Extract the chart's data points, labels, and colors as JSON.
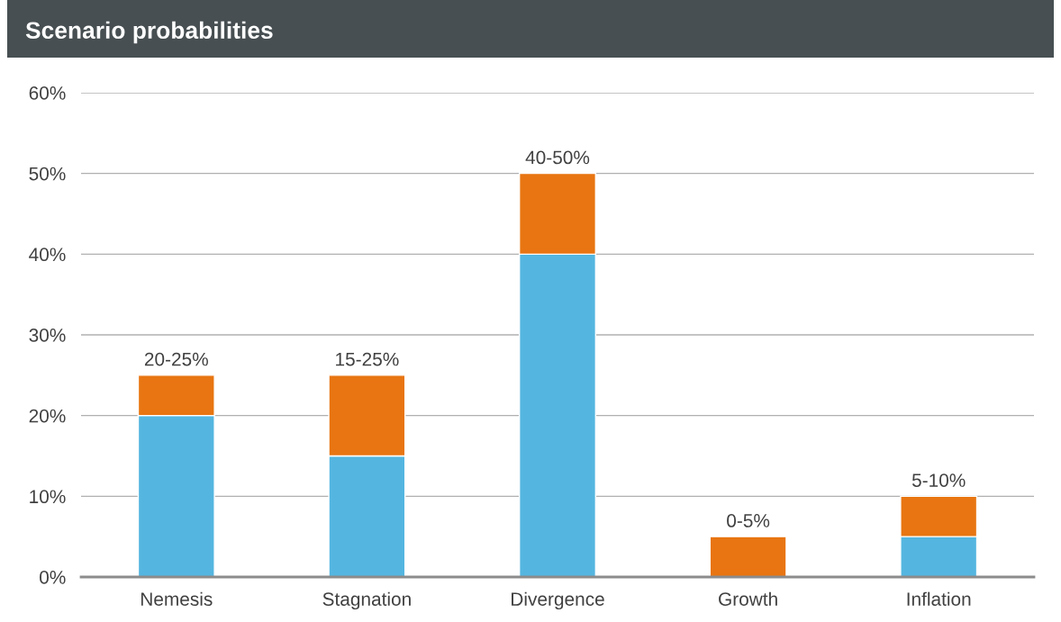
{
  "chart_data": {
    "type": "bar",
    "title": "Scenario probabilities",
    "stacked": true,
    "categories": [
      "Nemesis",
      "Stagnation",
      "Divergence",
      "Growth",
      "Inflation"
    ],
    "series": [
      {
        "color": "#54b6e0",
        "values": [
          20,
          15,
          40,
          0,
          5
        ]
      },
      {
        "color": "#e87511",
        "values": [
          5,
          10,
          10,
          5,
          5
        ]
      }
    ],
    "totals": [
      "20-25%",
      "15-25%",
      "40-50%",
      "0-5%",
      "5-10%"
    ],
    "ylim": [
      0,
      60
    ],
    "yticks": [
      {
        "value": 0,
        "label": "0%"
      },
      {
        "value": 10,
        "label": "10%"
      },
      {
        "value": 20,
        "label": "20%"
      },
      {
        "value": 30,
        "label": "30%"
      },
      {
        "value": 40,
        "label": "40%"
      },
      {
        "value": 50,
        "label": "50%"
      },
      {
        "value": 60,
        "label": "60%"
      }
    ],
    "grid": "y",
    "legend": false
  }
}
